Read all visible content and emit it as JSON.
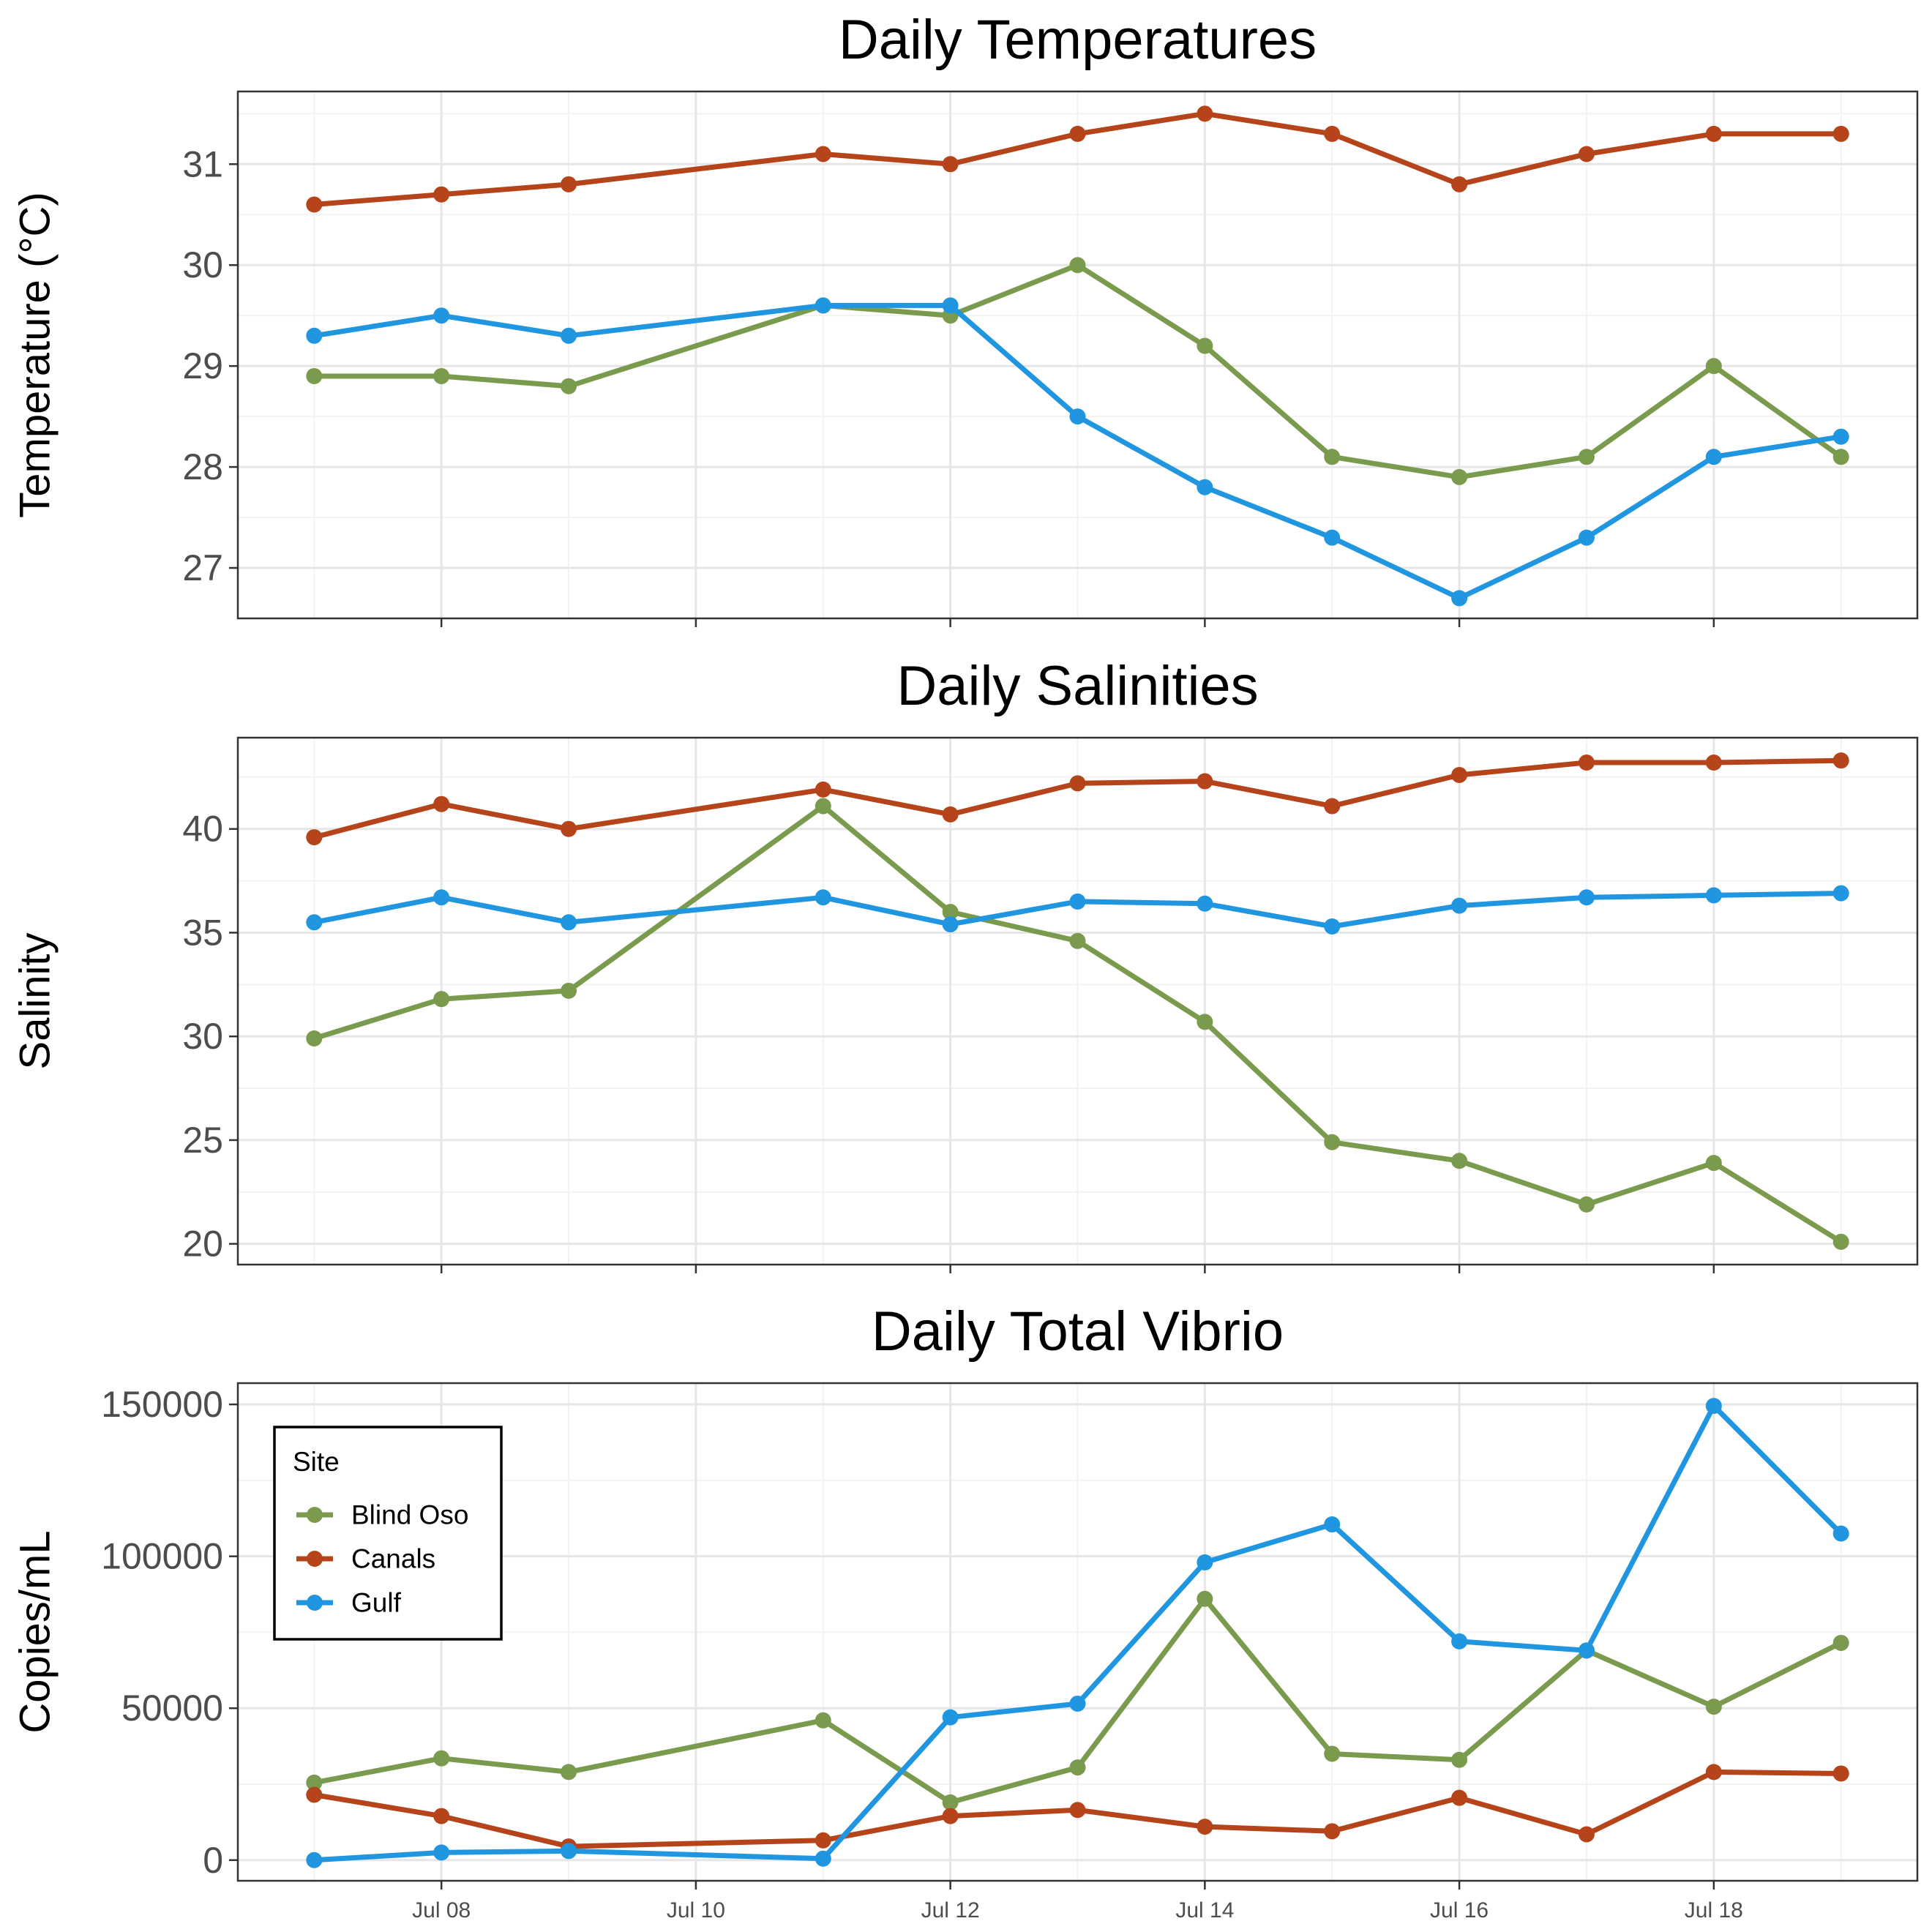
{
  "chart_data": [
    {
      "type": "line",
      "title": "Daily Temperatures",
      "xlabel": "",
      "ylabel": "Temperature (°C)",
      "ylim": [
        26.5,
        31.72
      ],
      "yticks": [
        27,
        28,
        29,
        30,
        31
      ],
      "ytick_labels": [
        "27",
        "28",
        "29",
        "30",
        "31"
      ],
      "x": [
        "2023-07-07",
        "2023-07-08",
        "2023-07-09",
        "2023-07-11",
        "2023-07-12",
        "2023-07-13",
        "2023-07-14",
        "2023-07-15",
        "2023-07-16",
        "2023-07-17",
        "2023-07-18",
        "2023-07-19"
      ],
      "series": [
        {
          "name": "Blind Oso",
          "color": "#7a9a4e",
          "values": [
            28.9,
            28.9,
            28.8,
            29.6,
            29.5,
            30.0,
            29.2,
            28.1,
            27.9,
            28.1,
            29.0,
            28.1
          ]
        },
        {
          "name": "Canals",
          "color": "#b5441a",
          "values": [
            30.6,
            30.7,
            30.8,
            31.1,
            31.0,
            31.3,
            31.5,
            31.3,
            30.8,
            31.1,
            31.3,
            31.3
          ]
        },
        {
          "name": "Gulf",
          "color": "#2196e0",
          "values": [
            29.3,
            29.5,
            29.3,
            29.6,
            29.6,
            28.5,
            27.8,
            27.3,
            26.7,
            27.3,
            28.1,
            28.3
          ]
        }
      ],
      "grid": true
    },
    {
      "type": "line",
      "title": "Daily Salinities",
      "xlabel": "",
      "ylabel": "Salinity",
      "ylim": [
        19.0,
        44.4
      ],
      "yticks": [
        20,
        25,
        30,
        35,
        40
      ],
      "ytick_labels": [
        "20",
        "25",
        "30",
        "35",
        "40"
      ],
      "x": [
        "2023-07-07",
        "2023-07-08",
        "2023-07-09",
        "2023-07-11",
        "2023-07-12",
        "2023-07-13",
        "2023-07-14",
        "2023-07-15",
        "2023-07-16",
        "2023-07-17",
        "2023-07-18",
        "2023-07-19"
      ],
      "series": [
        {
          "name": "Blind Oso",
          "color": "#7a9a4e",
          "values": [
            29.9,
            31.8,
            32.2,
            41.1,
            36.0,
            34.6,
            30.7,
            24.9,
            24.0,
            21.9,
            23.9,
            20.1
          ]
        },
        {
          "name": "Canals",
          "color": "#b5441a",
          "values": [
            39.6,
            41.2,
            40.0,
            41.9,
            40.7,
            42.2,
            42.3,
            41.1,
            42.6,
            43.2,
            43.2,
            43.3
          ]
        },
        {
          "name": "Gulf",
          "color": "#2196e0",
          "values": [
            35.5,
            36.7,
            35.5,
            36.7,
            35.4,
            36.5,
            36.4,
            35.3,
            36.3,
            36.7,
            36.8,
            36.9
          ]
        }
      ],
      "grid": true
    },
    {
      "type": "line",
      "title": "Daily Total Vibrio",
      "xlabel": "",
      "ylabel": "Copies/mL",
      "ylim": [
        -6800,
        157000
      ],
      "yticks": [
        0,
        50000,
        100000,
        150000
      ],
      "ytick_labels": [
        "0",
        "50000",
        "100000",
        "150000"
      ],
      "xticks": [
        "2023-07-08",
        "2023-07-10",
        "2023-07-12",
        "2023-07-14",
        "2023-07-16",
        "2023-07-18"
      ],
      "xtick_labels": [
        "Jul 08",
        "Jul 10",
        "Jul 12",
        "Jul 14",
        "Jul 16",
        "Jul 18"
      ],
      "x": [
        "2023-07-07",
        "2023-07-08",
        "2023-07-09",
        "2023-07-11",
        "2023-07-12",
        "2023-07-13",
        "2023-07-14",
        "2023-07-15",
        "2023-07-16",
        "2023-07-17",
        "2023-07-18",
        "2023-07-19"
      ],
      "series": [
        {
          "name": "Blind Oso",
          "color": "#7a9a4e",
          "values": [
            25500,
            33500,
            29000,
            46000,
            19000,
            30500,
            86000,
            35000,
            33000,
            69000,
            50500,
            71500
          ]
        },
        {
          "name": "Canals",
          "color": "#b5441a",
          "values": [
            21500,
            14500,
            4500,
            6500,
            14500,
            16500,
            11000,
            9500,
            20500,
            8500,
            29000,
            28500
          ]
        },
        {
          "name": "Gulf",
          "color": "#2196e0",
          "values": [
            0,
            2500,
            3000,
            500,
            47000,
            51500,
            98000,
            110500,
            72000,
            69000,
            149500,
            107500
          ]
        }
      ],
      "legend": {
        "title": "Site",
        "position": "top-left",
        "entries": [
          "Blind Oso",
          "Canals",
          "Gulf"
        ]
      },
      "grid": true
    }
  ]
}
